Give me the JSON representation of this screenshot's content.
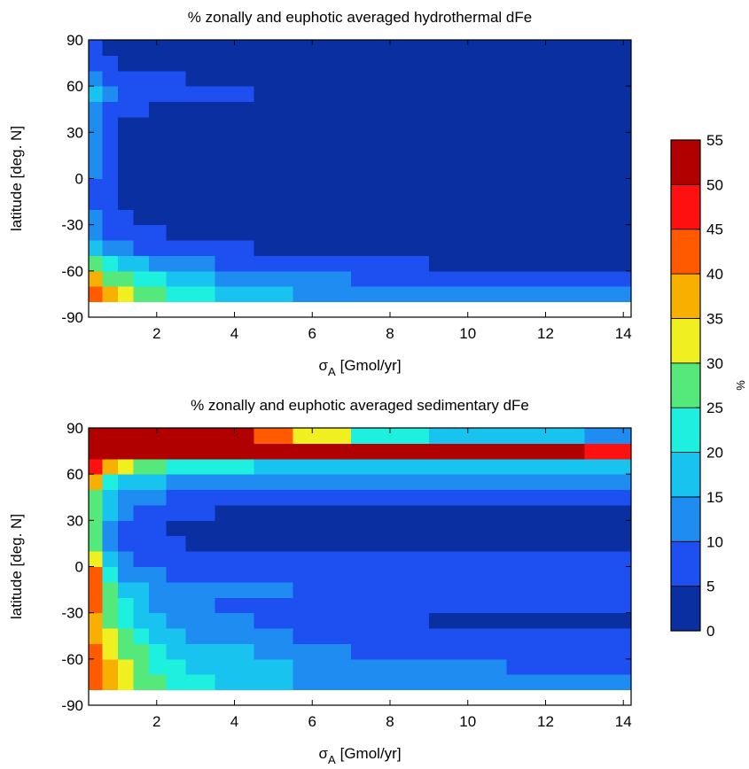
{
  "chart_data": [
    {
      "type": "contour",
      "title": "% zonally and euphotic averaged hydrothermal dFe",
      "xlabel": {
        "symbol": "σ",
        "subscript": "A",
        "unit": "[Gmol/yr]"
      },
      "ylabel": "latitude [deg. N]",
      "xlim": [
        0.25,
        14.2
      ],
      "xticks": [
        2,
        4,
        6,
        8,
        10,
        12,
        14
      ],
      "ylim": [
        -90,
        90
      ],
      "yticks": [
        -90,
        -60,
        -30,
        0,
        30,
        60,
        90
      ],
      "x": [
        0.4,
        0.8,
        1.2,
        1.6,
        2,
        2.5,
        3,
        4,
        5,
        6,
        8,
        10,
        12,
        14
      ],
      "y": [
        -75,
        -65,
        -55,
        -45,
        -35,
        -25,
        -15,
        -5,
        5,
        15,
        25,
        35,
        45,
        55,
        65,
        75,
        85
      ],
      "z": [
        [
          42,
          37,
          30,
          27,
          25,
          22,
          20,
          18,
          15,
          14,
          12,
          11,
          10,
          10
        ],
        [
          35,
          28,
          25,
          22,
          20,
          17,
          15,
          13,
          11,
          10,
          8,
          7,
          6,
          6
        ],
        [
          25,
          20,
          17,
          15,
          13,
          11,
          10,
          8,
          7,
          6,
          5,
          4,
          4,
          4
        ],
        [
          16,
          12,
          10,
          9,
          8,
          7,
          6,
          5,
          4,
          4,
          3,
          3,
          3,
          3
        ],
        [
          12,
          8,
          7,
          6,
          5,
          4,
          3,
          3,
          3,
          2,
          2,
          2,
          2,
          2
        ],
        [
          10,
          6,
          5,
          4,
          3,
          3,
          2,
          2,
          2,
          2,
          2,
          2,
          2,
          2
        ],
        [
          9,
          5,
          4,
          3,
          3,
          2,
          2,
          2,
          2,
          2,
          1,
          1,
          1,
          1
        ],
        [
          9,
          6,
          4,
          3,
          3,
          2,
          2,
          2,
          2,
          1,
          1,
          1,
          1,
          1
        ],
        [
          10,
          6,
          4,
          3,
          3,
          2,
          2,
          2,
          2,
          1,
          1,
          1,
          1,
          1
        ],
        [
          10,
          6,
          4,
          3,
          2,
          2,
          2,
          2,
          1,
          1,
          1,
          1,
          1,
          1
        ],
        [
          10,
          5,
          4,
          3,
          2,
          2,
          2,
          2,
          1,
          1,
          1,
          1,
          1,
          1
        ],
        [
          11,
          6,
          4,
          3,
          2,
          2,
          2,
          2,
          1,
          1,
          1,
          1,
          1,
          1
        ],
        [
          14,
          8,
          6,
          5,
          4,
          3,
          3,
          2,
          2,
          2,
          1,
          1,
          1,
          1
        ],
        [
          16,
          14,
          9,
          7,
          6,
          6,
          6,
          5,
          4,
          3,
          3,
          3,
          3,
          3
        ],
        [
          13,
          8,
          6,
          5,
          5,
          5,
          4,
          4,
          4,
          4,
          4,
          4,
          4,
          4
        ],
        [
          8,
          5,
          4,
          3,
          3,
          3,
          3,
          3,
          3,
          3,
          3,
          3,
          3,
          3
        ],
        [
          5,
          3,
          3,
          3,
          3,
          3,
          3,
          3,
          3,
          3,
          3,
          3,
          3,
          3
        ]
      ]
    },
    {
      "type": "contour",
      "title": "% zonally and euphotic averaged sedimentary dFe",
      "xlabel": {
        "symbol": "σ",
        "subscript": "A",
        "unit": "[Gmol/yr]"
      },
      "ylabel": "latitude [deg. N]",
      "xlim": [
        0.25,
        14.2
      ],
      "xticks": [
        2,
        4,
        6,
        8,
        10,
        12,
        14
      ],
      "ylim": [
        -90,
        90
      ],
      "yticks": [
        -90,
        -60,
        -30,
        0,
        30,
        60,
        90
      ],
      "x": [
        0.4,
        0.8,
        1.2,
        1.6,
        2,
        2.5,
        3,
        4,
        5,
        6,
        8,
        10,
        12,
        14
      ],
      "y": [
        -75,
        -65,
        -55,
        -45,
        -35,
        -25,
        -15,
        -5,
        5,
        15,
        25,
        35,
        45,
        55,
        65,
        75,
        85
      ],
      "z": [
        [
          40,
          35,
          30,
          28,
          25,
          22,
          20,
          17,
          15,
          14,
          13,
          12,
          11,
          11
        ],
        [
          40,
          35,
          30,
          27,
          24,
          21,
          19,
          17,
          15,
          13,
          11,
          10,
          9,
          9
        ],
        [
          40,
          32,
          28,
          25,
          22,
          19,
          17,
          15,
          13,
          11,
          9,
          8,
          8,
          7
        ],
        [
          38,
          30,
          25,
          21,
          18,
          16,
          14,
          12,
          10,
          8,
          6,
          5,
          5,
          5
        ],
        [
          38,
          27,
          22,
          18,
          16,
          14,
          12,
          10,
          8,
          6,
          5,
          4,
          4,
          4
        ],
        [
          40,
          25,
          20,
          17,
          14,
          12,
          11,
          9,
          8,
          7,
          6,
          5,
          5,
          5
        ],
        [
          40,
          25,
          18,
          15,
          13,
          12,
          11,
          10,
          10,
          9,
          9,
          9,
          9,
          9
        ],
        [
          40,
          20,
          14,
          11,
          10,
          9,
          9,
          8,
          8,
          7,
          7,
          7,
          7,
          7
        ],
        [
          32,
          15,
          11,
          9,
          8,
          7,
          6,
          6,
          5,
          5,
          5,
          5,
          5,
          5
        ],
        [
          28,
          13,
          9,
          7,
          6,
          5,
          4,
          4,
          3,
          3,
          3,
          3,
          3,
          3
        ],
        [
          25,
          12,
          8,
          6,
          5,
          4,
          3,
          3,
          3,
          3,
          3,
          3,
          3,
          3
        ],
        [
          25,
          15,
          10,
          8,
          7,
          6,
          5,
          4,
          3,
          3,
          3,
          3,
          3,
          3
        ],
        [
          28,
          17,
          13,
          11,
          10,
          9,
          8,
          8,
          7,
          7,
          6,
          6,
          6,
          6
        ],
        [
          35,
          22,
          18,
          16,
          15,
          14,
          13,
          13,
          12,
          12,
          12,
          12,
          12,
          12
        ],
        [
          45,
          35,
          30,
          27,
          25,
          22,
          20,
          20,
          18,
          17,
          16,
          15,
          15,
          15
        ],
        [
          55,
          55,
          55,
          55,
          55,
          55,
          55,
          55,
          55,
          55,
          55,
          55,
          50,
          45
        ],
        [
          55,
          55,
          55,
          55,
          55,
          55,
          55,
          52,
          42,
          30,
          22,
          18,
          15,
          14
        ]
      ]
    },
    {
      "type": "colorbar",
      "label": "%",
      "ylim": [
        0,
        55
      ],
      "yticks": [
        0,
        5,
        10,
        15,
        20,
        25,
        30,
        35,
        40,
        45,
        50,
        55
      ],
      "colors": [
        "#0a2fa0",
        "#1e4ff0",
        "#1e8cf0",
        "#19c3f0",
        "#1ef0e0",
        "#55e87a",
        "#f0f020",
        "#f8b000",
        "#ff5a00",
        "#ff1010",
        "#b00000"
      ]
    }
  ]
}
